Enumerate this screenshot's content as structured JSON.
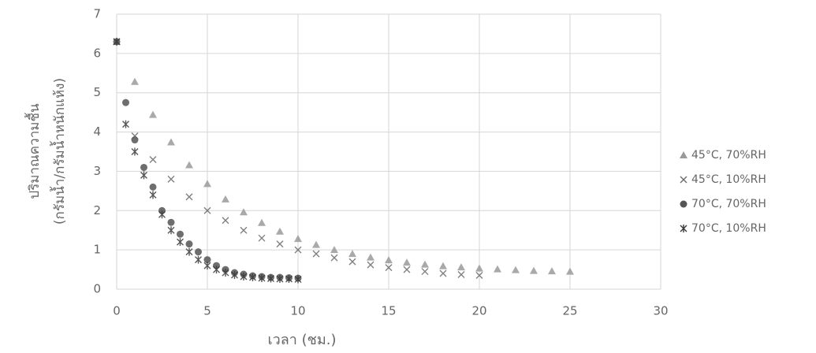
{
  "chart_data": {
    "type": "scatter",
    "xlabel": "เวลา (ชม.)",
    "ylabel": [
      "ปริมาณความชื้น",
      "(กรัมน้ำ/กรัมน้ำหนักแห้ง)"
    ],
    "xlim": [
      0,
      30
    ],
    "xticks": [
      0,
      5,
      10,
      15,
      20,
      25,
      30
    ],
    "ylim": [
      0,
      7
    ],
    "yticks": [
      0,
      1,
      2,
      3,
      4,
      5,
      6,
      7
    ],
    "grid": true,
    "legend": "right",
    "series": [
      {
        "name": "45°C, 70%RH",
        "color": "#9a9a9a",
        "marker": "triangle",
        "x": [
          0,
          1,
          2,
          3,
          4,
          5,
          6,
          7,
          8,
          9,
          10,
          11,
          12,
          13,
          14,
          15,
          16,
          17,
          18,
          19,
          20,
          21,
          22,
          23,
          24,
          25
        ],
        "values": [
          6.3,
          5.28,
          4.44,
          3.74,
          3.16,
          2.68,
          2.29,
          1.96,
          1.69,
          1.47,
          1.28,
          1.13,
          1.0,
          0.9,
          0.81,
          0.74,
          0.68,
          0.63,
          0.59,
          0.56,
          0.53,
          0.51,
          0.49,
          0.47,
          0.46,
          0.45
        ]
      },
      {
        "name": "45°C, 10%RH",
        "color": "#6a6a6a",
        "marker": "x",
        "x": [
          0,
          1,
          2,
          3,
          4,
          5,
          6,
          7,
          8,
          9,
          10,
          11,
          12,
          13,
          14,
          15,
          16,
          17,
          18,
          19,
          20
        ],
        "values": [
          6.3,
          3.9,
          3.3,
          2.8,
          2.35,
          2.0,
          1.75,
          1.5,
          1.3,
          1.15,
          1.0,
          0.9,
          0.8,
          0.7,
          0.62,
          0.55,
          0.5,
          0.45,
          0.4,
          0.37,
          0.35
        ]
      },
      {
        "name": "70°C, 70%RH",
        "color": "#555555",
        "marker": "circle",
        "x": [
          0,
          0.5,
          1,
          1.5,
          2,
          2.5,
          3,
          3.5,
          4,
          4.5,
          5,
          5.5,
          6,
          6.5,
          7,
          7.5,
          8,
          8.5,
          9,
          9.5,
          10
        ],
        "values": [
          6.3,
          4.75,
          3.8,
          3.1,
          2.6,
          2.0,
          1.7,
          1.4,
          1.15,
          0.95,
          0.75,
          0.6,
          0.5,
          0.42,
          0.38,
          0.34,
          0.32,
          0.3,
          0.3,
          0.29,
          0.28
        ]
      },
      {
        "name": "70°C, 10%RH",
        "color": "#3a3a3a",
        "marker": "asterisk",
        "x": [
          0,
          0.5,
          1,
          1.5,
          2,
          2.5,
          3,
          3.5,
          4,
          4.5,
          5,
          5.5,
          6,
          6.5,
          7,
          7.5,
          8,
          8.5,
          9,
          9.5,
          10
        ],
        "values": [
          6.3,
          4.2,
          3.5,
          2.9,
          2.4,
          1.9,
          1.5,
          1.2,
          0.95,
          0.75,
          0.6,
          0.5,
          0.42,
          0.36,
          0.32,
          0.3,
          0.28,
          0.27,
          0.26,
          0.26,
          0.25
        ]
      }
    ]
  }
}
